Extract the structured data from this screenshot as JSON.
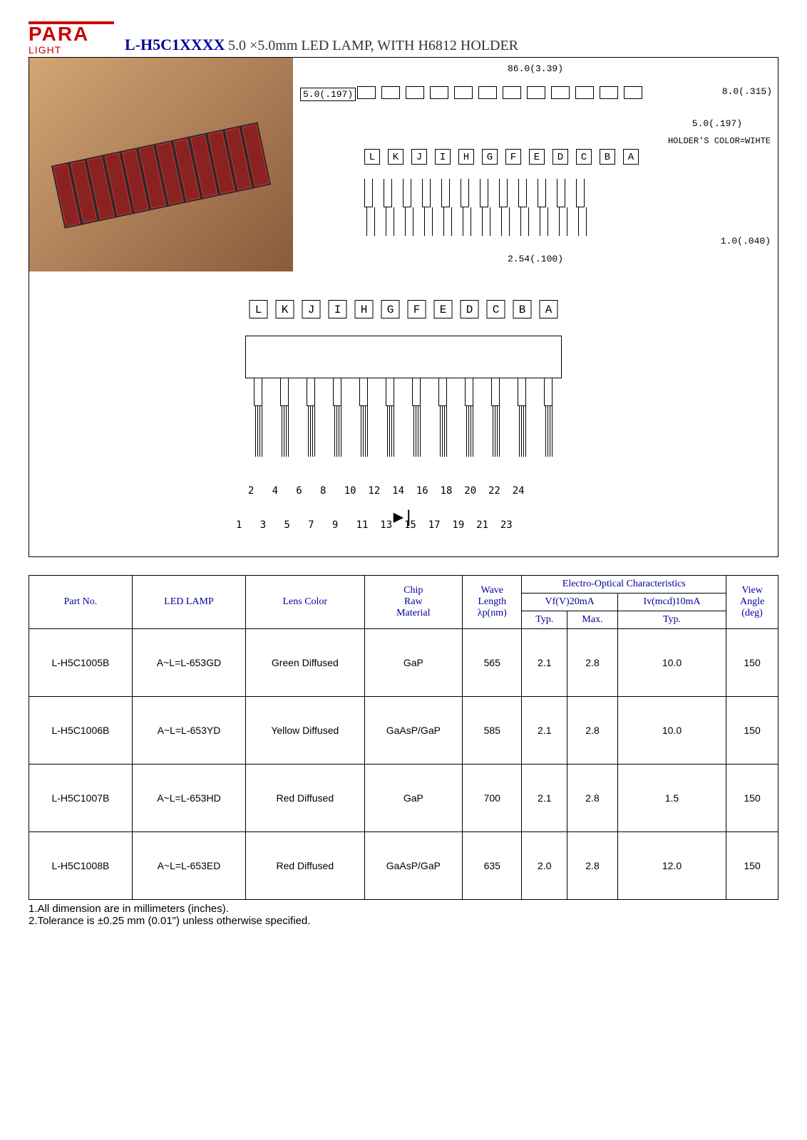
{
  "logo": {
    "line1": "PARA",
    "line2": "LIGHT"
  },
  "title": {
    "model": "L-H5C1XXXX",
    "desc": "5.0 ×5.0mm LED LAMP, WITH H6812 HOLDER"
  },
  "schematic": {
    "dim_overall": "86.0(3.39)",
    "dim_height": "5.0(.197)",
    "dim_end": "8.0(.315)",
    "dim_end2": "5.0(.197)",
    "holder_note": "HOLDER'S COLOR=WIHTE",
    "letters": [
      "L",
      "K",
      "J",
      "I",
      "H",
      "G",
      "F",
      "E",
      "D",
      "C",
      "B",
      "A"
    ],
    "dim_pitch": "2.54(.100)",
    "dim_pin": "1.0(.040)",
    "pin_numbers_top": "  2   4   6   8   10  12  14  16  18  20  22  24",
    "pin_numbers_bot": "1   3   5   7   9   11  13  15  17  19  21  23",
    "diode": "▶|"
  },
  "table": {
    "headers": {
      "part_no": "Part No.",
      "led_lamp": "LED LAMP",
      "lens_color": "Lens Color",
      "chip": "Chip\nRaw\nMaterial",
      "wave": "Wave\nLength\nλp(nm)",
      "electro": "Electro-Optical Characteristics",
      "vf": "Vf(V)20mA",
      "iv": "Iv(mcd)10mA",
      "typ": "Typ.",
      "max": "Max.",
      "typ2": "Typ.",
      "view": "View\nAngle\n(deg)"
    },
    "rows": [
      {
        "part": "L-H5C1005B",
        "lamp": "A~L=L-653GD",
        "lens": "Green Diffused",
        "chip": "GaP",
        "wave": "565",
        "vf_typ": "2.1",
        "vf_max": "2.8",
        "iv": "10.0",
        "angle": "150"
      },
      {
        "part": "L-H5C1006B",
        "lamp": "A~L=L-653YD",
        "lens": "Yellow Diffused",
        "chip": "GaAsP/GaP",
        "wave": "585",
        "vf_typ": "2.1",
        "vf_max": "2.8",
        "iv": "10.0",
        "angle": "150"
      },
      {
        "part": "L-H5C1007B",
        "lamp": "A~L=L-653HD",
        "lens": "Red Diffused",
        "chip": "GaP",
        "wave": "700",
        "vf_typ": "2.1",
        "vf_max": "2.8",
        "iv": "1.5",
        "angle": "150"
      },
      {
        "part": "L-H5C1008B",
        "lamp": "A~L=L-653ED",
        "lens": "Red Diffused",
        "chip": "GaAsP/GaP",
        "wave": "635",
        "vf_typ": "2.0",
        "vf_max": "2.8",
        "iv": "12.0",
        "angle": "150"
      }
    ]
  },
  "footnotes": {
    "n1": "1.All dimension are in millimeters (inches).",
    "n2": "2.Tolerance is ±0.25 mm (0.01\") unless otherwise specified."
  },
  "colors": {
    "brand": "#cc0000",
    "accent": "#000099",
    "text": "#000000"
  }
}
